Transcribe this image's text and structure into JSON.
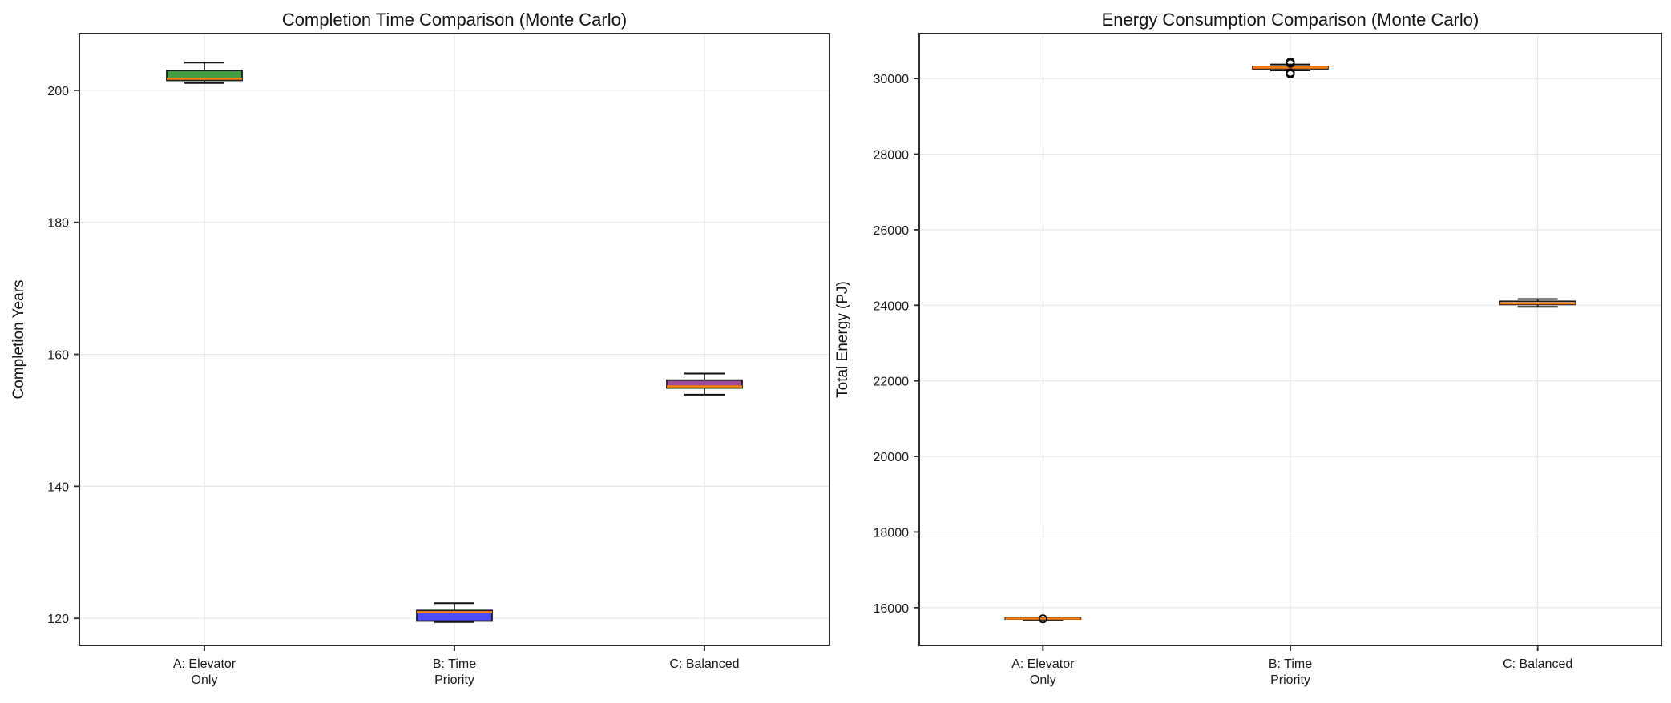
{
  "style": {
    "background": "#ffffff",
    "grid_color": "#e8e8e8",
    "spine_color": "#2d2d2d",
    "median_color": "#ff7f0e",
    "box_edge_color": "#1c1c1c",
    "whisker_color": "#111111",
    "flier_edge_color": "#000000",
    "text_color": "#141414"
  },
  "chart_data": [
    {
      "type": "box",
      "title": "Completion Time Comparison (Monte Carlo)",
      "ylabel": "Completion Years",
      "xlabel": "",
      "grid": true,
      "ylim": [
        115.9,
        208.6
      ],
      "yticks": [
        "120",
        "140",
        "160",
        "180",
        "200"
      ],
      "ytick_values": [
        120,
        140,
        160,
        180,
        200
      ],
      "categories": [
        [
          "A: Elevator",
          "Only"
        ],
        [
          "B: Time",
          "Priority"
        ],
        [
          "C: Balanced"
        ]
      ],
      "boxes": [
        {
          "label": "A: Elevator Only",
          "whislo": 201.1,
          "q1": 201.5,
          "med": 201.75,
          "q3": 203.0,
          "whishi": 204.2,
          "fliers": [],
          "fill": "#44a044"
        },
        {
          "label": "B: Time Priority",
          "whislo": 119.45,
          "q1": 119.6,
          "med": 120.95,
          "q3": 121.2,
          "whishi": 122.3,
          "fliers": [],
          "fill": "#4d4dff"
        },
        {
          "label": "C: Balanced",
          "whislo": 153.9,
          "q1": 154.9,
          "med": 155.15,
          "q3": 156.1,
          "whishi": 157.1,
          "fliers": [],
          "fill": "#994d99"
        }
      ]
    },
    {
      "type": "box",
      "title": "Energy Consumption Comparison (Monte Carlo)",
      "ylabel": "Total Energy (PJ)",
      "xlabel": "",
      "grid": true,
      "ylim": [
        15000,
        31190
      ],
      "yticks": [
        "16000",
        "18000",
        "20000",
        "22000",
        "24000",
        "26000",
        "28000",
        "30000"
      ],
      "ytick_values": [
        16000,
        18000,
        20000,
        22000,
        24000,
        26000,
        28000,
        30000
      ],
      "categories": [
        [
          "A: Elevator",
          "Only"
        ],
        [
          "B: Time",
          "Priority"
        ],
        [
          "C: Balanced"
        ]
      ],
      "boxes": [
        {
          "label": "A: Elevator Only",
          "whislo": 15680,
          "q1": 15698,
          "med": 15710,
          "q3": 15722,
          "whishi": 15740,
          "fliers": [
            15705
          ],
          "fill": "none"
        },
        {
          "label": "B: Time Priority",
          "whislo": 30215,
          "q1": 30258,
          "med": 30290,
          "q3": 30318,
          "whishi": 30372,
          "fliers": [
            30440,
            30402,
            30155,
            30120
          ],
          "fill": "none"
        },
        {
          "label": "C: Balanced",
          "whislo": 23958,
          "q1": 24020,
          "med": 24049,
          "q3": 24105,
          "whishi": 24165,
          "fliers": [],
          "fill": "none"
        }
      ]
    }
  ]
}
